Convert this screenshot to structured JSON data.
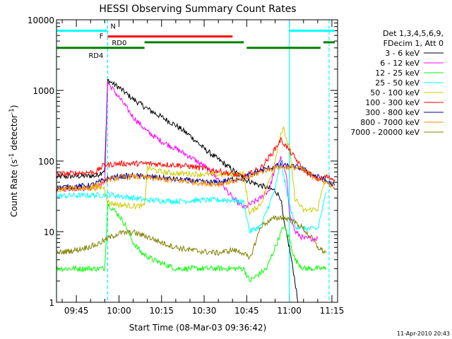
{
  "chart_data": {
    "type": "line",
    "title": "HESSI Observing Summary Count Rates",
    "xlabel": "Start Time (08-Mar-03 09:36:42)",
    "ylabel_main": "Count Rate (s",
    "ylabel_sup1": "-1",
    "ylabel_mid": " detector",
    "ylabel_sup2": "-1",
    "ylabel_end": ")",
    "y_scale": "log",
    "ylim": [
      1,
      10000
    ],
    "xlim": [
      "09:38",
      "11:17"
    ],
    "y_ticks": [
      {
        "value": 1,
        "label": "1"
      },
      {
        "value": 10,
        "label": "10"
      },
      {
        "value": 100,
        "label": "100"
      },
      {
        "value": 1000,
        "label": "1000"
      },
      {
        "value": 10000,
        "label": "10000"
      }
    ],
    "x_ticks": [
      {
        "time": "09:45",
        "label": "09:45"
      },
      {
        "time": "10:00",
        "label": "10:00"
      },
      {
        "time": "10:15",
        "label": "10:15"
      },
      {
        "time": "10:30",
        "label": "10:30"
      },
      {
        "time": "10:45",
        "label": "10:45"
      },
      {
        "time": "11:00",
        "label": "11:00"
      },
      {
        "time": "11:15",
        "label": "11:15"
      }
    ],
    "legend_header": [
      "Det 1,3,4,5,6,9,",
      "FDecim 1, Att 0"
    ],
    "legend_placement": "right",
    "series": [
      {
        "name": "3 - 6 keV",
        "color": "#000000",
        "points": [
          [
            "09:38",
            60
          ],
          [
            "09:52",
            62
          ],
          [
            "09:55",
            75
          ],
          [
            "09:56",
            1400
          ],
          [
            "10:00",
            1100
          ],
          [
            "10:05",
            750
          ],
          [
            "10:10",
            550
          ],
          [
            "10:15",
            420
          ],
          [
            "10:20",
            320
          ],
          [
            "10:25",
            230
          ],
          [
            "10:30",
            150
          ],
          [
            "10:35",
            105
          ],
          [
            "10:40",
            75
          ],
          [
            "10:44",
            55
          ],
          [
            "10:46",
            52
          ],
          [
            "10:48",
            48
          ],
          [
            "10:52",
            42
          ],
          [
            "10:55",
            38
          ],
          [
            "10:57",
            30
          ],
          [
            "10:58",
            14
          ],
          [
            "11:00",
            6
          ],
          [
            "11:02",
            2
          ],
          [
            "11:03",
            1
          ]
        ]
      },
      {
        "name": "6 - 12 keV",
        "color": "#ff00ff",
        "points": [
          [
            "09:38",
            40
          ],
          [
            "09:52",
            42
          ],
          [
            "09:55",
            50
          ],
          [
            "09:56",
            1300
          ],
          [
            "10:00",
            800
          ],
          [
            "10:05",
            420
          ],
          [
            "10:10",
            260
          ],
          [
            "10:15",
            190
          ],
          [
            "10:20",
            150
          ],
          [
            "10:25",
            115
          ],
          [
            "10:30",
            85
          ],
          [
            "10:35",
            55
          ],
          [
            "10:40",
            30
          ],
          [
            "10:44",
            22
          ],
          [
            "10:46",
            24
          ],
          [
            "10:50",
            30
          ],
          [
            "10:53",
            40
          ],
          [
            "10:55",
            80
          ],
          [
            "10:57",
            110
          ],
          [
            "10:59",
            60
          ],
          [
            "11:00",
            20
          ],
          [
            "11:02",
            10
          ],
          [
            "11:05",
            8
          ],
          [
            "11:10",
            8
          ]
        ]
      },
      {
        "name": "12 - 25 keV",
        "color": "#00ff00",
        "points": [
          [
            "09:38",
            3
          ],
          [
            "09:55",
            3
          ],
          [
            "09:56",
            25
          ],
          [
            "10:00",
            17
          ],
          [
            "10:02",
            13
          ],
          [
            "10:05",
            7
          ],
          [
            "10:08",
            5
          ],
          [
            "10:12",
            4
          ],
          [
            "10:20",
            3
          ],
          [
            "10:30",
            3
          ],
          [
            "10:40",
            3
          ],
          [
            "10:44",
            3
          ],
          [
            "10:46",
            2
          ],
          [
            "10:52",
            3
          ],
          [
            "10:55",
            6
          ],
          [
            "10:58",
            12
          ],
          [
            "11:00",
            8
          ],
          [
            "11:02",
            4
          ],
          [
            "11:05",
            3
          ],
          [
            "11:10",
            3
          ],
          [
            "11:13",
            3
          ]
        ]
      },
      {
        "name": "25 - 50 keV",
        "color": "#00ffff",
        "points": [
          [
            "09:38",
            32
          ],
          [
            "09:55",
            33
          ],
          [
            "09:56",
            34
          ],
          [
            "10:00",
            32
          ],
          [
            "10:05",
            30
          ],
          [
            "10:10",
            28
          ],
          [
            "10:20",
            27
          ],
          [
            "10:30",
            28
          ],
          [
            "10:40",
            28
          ],
          [
            "10:44",
            26
          ],
          [
            "10:46",
            10
          ],
          [
            "10:50",
            12
          ],
          [
            "10:55",
            40
          ],
          [
            "10:57",
            100
          ],
          [
            "10:58",
            60
          ],
          [
            "11:00",
            25
          ],
          [
            "11:02",
            12
          ],
          [
            "11:05",
            11
          ],
          [
            "11:10",
            11
          ],
          [
            "11:13",
            36
          ]
        ]
      },
      {
        "name": "50 - 100 keV",
        "color": "#cccc00",
        "points": [
          [
            "09:38",
            40
          ],
          [
            "09:55",
            42
          ],
          [
            "09:56",
            26
          ],
          [
            "10:00",
            24
          ],
          [
            "10:05",
            23
          ],
          [
            "10:09",
            23
          ],
          [
            "10:10",
            80
          ],
          [
            "10:15",
            70
          ],
          [
            "10:20",
            67
          ],
          [
            "10:25",
            66
          ],
          [
            "10:30",
            65
          ],
          [
            "10:35",
            64
          ],
          [
            "10:40",
            65
          ],
          [
            "10:44",
            65
          ],
          [
            "10:46",
            18
          ],
          [
            "10:50",
            25
          ],
          [
            "10:54",
            70
          ],
          [
            "10:57",
            250
          ],
          [
            "10:58",
            280
          ],
          [
            "11:00",
            150
          ],
          [
            "11:02",
            30
          ],
          [
            "11:05",
            20
          ],
          [
            "11:10",
            21
          ],
          [
            "11:13",
            65
          ]
        ]
      },
      {
        "name": "100 - 300 keV",
        "color": "#ff0000",
        "points": [
          [
            "09:38",
            65
          ],
          [
            "09:52",
            70
          ],
          [
            "09:55",
            90
          ],
          [
            "09:56",
            88
          ],
          [
            "10:00",
            92
          ],
          [
            "10:05",
            92
          ],
          [
            "10:10",
            92
          ],
          [
            "10:15",
            90
          ],
          [
            "10:20",
            88
          ],
          [
            "10:25",
            84
          ],
          [
            "10:30",
            78
          ],
          [
            "10:35",
            72
          ],
          [
            "10:40",
            65
          ],
          [
            "10:44",
            60
          ],
          [
            "10:46",
            66
          ],
          [
            "10:50",
            80
          ],
          [
            "10:54",
            130
          ],
          [
            "10:57",
            200
          ],
          [
            "10:59",
            160
          ],
          [
            "11:02",
            110
          ],
          [
            "11:05",
            75
          ],
          [
            "11:10",
            55
          ],
          [
            "11:13",
            60
          ],
          [
            "11:16",
            55
          ]
        ]
      },
      {
        "name": "300 - 800 keV",
        "color": "#00008b",
        "points": [
          [
            "09:38",
            42
          ],
          [
            "09:50",
            45
          ],
          [
            "09:56",
            56
          ],
          [
            "10:00",
            60
          ],
          [
            "10:05",
            62
          ],
          [
            "10:10",
            60
          ],
          [
            "10:15",
            58
          ],
          [
            "10:20",
            55
          ],
          [
            "10:25",
            53
          ],
          [
            "10:30",
            50
          ],
          [
            "10:35",
            50
          ],
          [
            "10:40",
            55
          ],
          [
            "10:44",
            58
          ],
          [
            "10:48",
            68
          ],
          [
            "10:52",
            78
          ],
          [
            "10:56",
            85
          ],
          [
            "11:00",
            85
          ],
          [
            "11:04",
            80
          ],
          [
            "11:08",
            65
          ],
          [
            "11:12",
            55
          ],
          [
            "11:16",
            45
          ]
        ]
      },
      {
        "name": "800 - 7000 keV",
        "color": "#ff8800",
        "points": [
          [
            "09:38",
            40
          ],
          [
            "09:50",
            42
          ],
          [
            "09:56",
            54
          ],
          [
            "10:00",
            58
          ],
          [
            "10:05",
            60
          ],
          [
            "10:10",
            58
          ],
          [
            "10:15",
            55
          ],
          [
            "10:20",
            53
          ],
          [
            "10:25",
            51
          ],
          [
            "10:30",
            48
          ],
          [
            "10:35",
            47
          ],
          [
            "10:40",
            52
          ],
          [
            "10:44",
            55
          ],
          [
            "10:48",
            65
          ],
          [
            "10:52",
            75
          ],
          [
            "10:56",
            82
          ],
          [
            "11:00",
            82
          ],
          [
            "11:04",
            78
          ],
          [
            "11:08",
            62
          ],
          [
            "11:12",
            52
          ],
          [
            "11:16",
            43
          ]
        ]
      },
      {
        "name": "7000 - 20000 keV",
        "color": "#808000",
        "points": [
          [
            "09:38",
            5
          ],
          [
            "09:45",
            5.5
          ],
          [
            "09:52",
            6.5
          ],
          [
            "09:56",
            8
          ],
          [
            "10:00",
            9.5
          ],
          [
            "10:05",
            9.8
          ],
          [
            "10:10",
            8.5
          ],
          [
            "10:15",
            7
          ],
          [
            "10:20",
            6
          ],
          [
            "10:25",
            5.5
          ],
          [
            "10:30",
            5.2
          ],
          [
            "10:35",
            5
          ],
          [
            "10:40",
            5.5
          ],
          [
            "10:44",
            5
          ],
          [
            "10:46",
            4
          ],
          [
            "10:50",
            12
          ],
          [
            "10:54",
            15
          ],
          [
            "10:57",
            16
          ],
          [
            "11:00",
            15
          ],
          [
            "11:04",
            12
          ],
          [
            "11:08",
            8
          ],
          [
            "11:10",
            6
          ],
          [
            "11:13",
            5
          ]
        ]
      }
    ],
    "state_bars": [
      {
        "label": "N",
        "color": "#00ffff",
        "segments": [
          [
            "09:38",
            "09:56"
          ],
          [
            "11:00",
            "11:16"
          ]
        ],
        "value": 7000
      },
      {
        "label": "F",
        "color": "#ff0000",
        "segments": [
          [
            "09:56",
            "10:40"
          ]
        ],
        "value": 5800
      },
      {
        "label": "RD0",
        "color": "#008000",
        "segments": [
          [
            "10:09",
            "10:44"
          ],
          [
            "11:12",
            "11:16"
          ]
        ],
        "value": 4800
      },
      {
        "label": "RD4",
        "color": "#008000",
        "segments": [
          [
            "09:38",
            "10:09"
          ],
          [
            "10:45",
            "11:11"
          ]
        ],
        "value": 4000
      }
    ],
    "vertical_markers": [
      {
        "time": "09:38",
        "color": "#00ffff",
        "style": "solid"
      },
      {
        "time": "09:56",
        "color": "#00ffff",
        "style": "dashed"
      },
      {
        "time": "11:00",
        "color": "#00ffff",
        "style": "solid"
      },
      {
        "time": "11:14",
        "color": "#00ffff",
        "style": "dashed"
      }
    ],
    "footer": "11-Apr-2010 20:43"
  }
}
